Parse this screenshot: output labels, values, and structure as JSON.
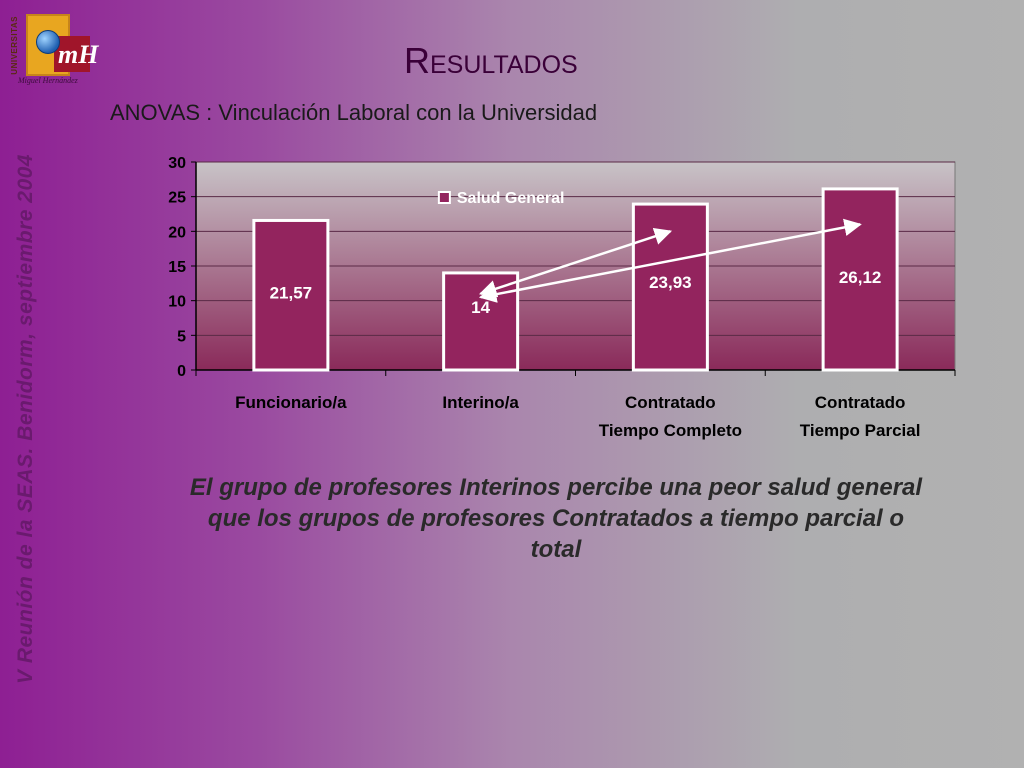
{
  "slide": {
    "title": "Resultados",
    "subtitle": "ANOVAS : Vinculación Laboral con la Universidad",
    "side_text": "V Reunión de la SEAS. Benidorm, septiembre 2004",
    "caption": "El grupo de profesores Interinos percibe una peor salud general que los grupos de profesores Contratados a tiempo parcial o total"
  },
  "logo": {
    "vertical_text": "UNIVERSITAS",
    "monogram": "mH",
    "name": "Miguel Hernández"
  },
  "colors": {
    "bar_fill": "#93245e",
    "bar_stroke": "#ffffff",
    "plot_top": "#c8c3c7",
    "plot_bottom": "#8a2a5a",
    "arrow": "#ffffff"
  },
  "chart_data": {
    "type": "bar",
    "categories": [
      [
        "Funcionario/a"
      ],
      [
        "Interino/a"
      ],
      [
        "Contratado",
        "Tiempo Completo"
      ],
      [
        "Contratado",
        "Tiempo Parcial"
      ]
    ],
    "series": [
      {
        "name": "Salud General",
        "values": [
          21.57,
          14,
          23.93,
          26.12
        ]
      }
    ],
    "data_labels": [
      "21,57",
      "14",
      "23,93",
      "26,12"
    ],
    "ylim": [
      0,
      30
    ],
    "yticks": [
      0,
      5,
      10,
      15,
      20,
      25,
      30
    ],
    "legend": "top-left inside plot",
    "grid": true,
    "annotations": [
      {
        "type": "double-arrow",
        "from": {
          "category": 1,
          "y": 11
        },
        "to": {
          "category": 2,
          "y": 20
        }
      },
      {
        "type": "double-arrow",
        "from": {
          "category": 1,
          "y": 10.5
        },
        "to": {
          "category": 3,
          "y": 21
        }
      }
    ]
  }
}
